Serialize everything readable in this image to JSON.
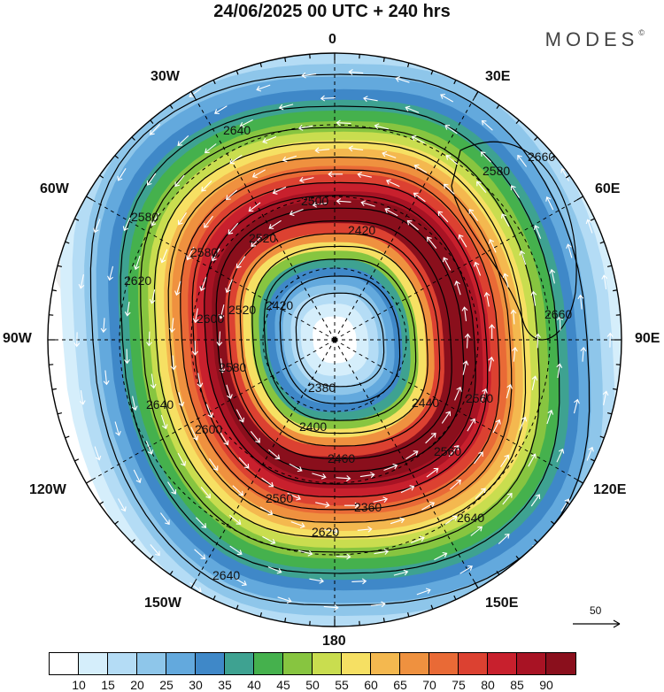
{
  "title": "24/06/2025  00 UTC  + 240 hrs",
  "brand": "MODES",
  "brand_mark": "©",
  "lon_labels": {
    "n": "0",
    "ne30": "30E",
    "ne60": "60E",
    "e": "90E",
    "se120": "120E",
    "se150": "150E",
    "s": "180",
    "sw150": "150W",
    "sw120": "120W",
    "w": "90W",
    "nw60": "60W",
    "nw30": "30W"
  },
  "contour_labels": [
    "2640",
    "2660",
    "2660",
    "2580",
    "2500",
    "2420",
    "2420",
    "2580",
    "2520",
    "2520",
    "2580",
    "2560",
    "2380",
    "2440",
    "2560",
    "2640",
    "2600",
    "2560",
    "2620",
    "2640",
    "2640",
    "2620",
    "2580",
    "2600",
    "2400",
    "2460",
    "2360"
  ],
  "wind_reference": {
    "value": "50"
  },
  "colorbar": {
    "colors": [
      "#ffffff",
      "#d5eefb",
      "#b4dcf5",
      "#8ec6ea",
      "#63a9dd",
      "#3f88c8",
      "#3ea291",
      "#45b14d",
      "#87c540",
      "#c9dd4f",
      "#f6e063",
      "#f4b84f",
      "#ef913f",
      "#e96a36",
      "#dc4131",
      "#c8202d",
      "#a81324",
      "#8a0f1c"
    ],
    "labels": [
      "10",
      "15",
      "20",
      "25",
      "30",
      "35",
      "40",
      "45",
      "50",
      "55",
      "60",
      "65",
      "70",
      "75",
      "80",
      "85",
      "90"
    ]
  }
}
